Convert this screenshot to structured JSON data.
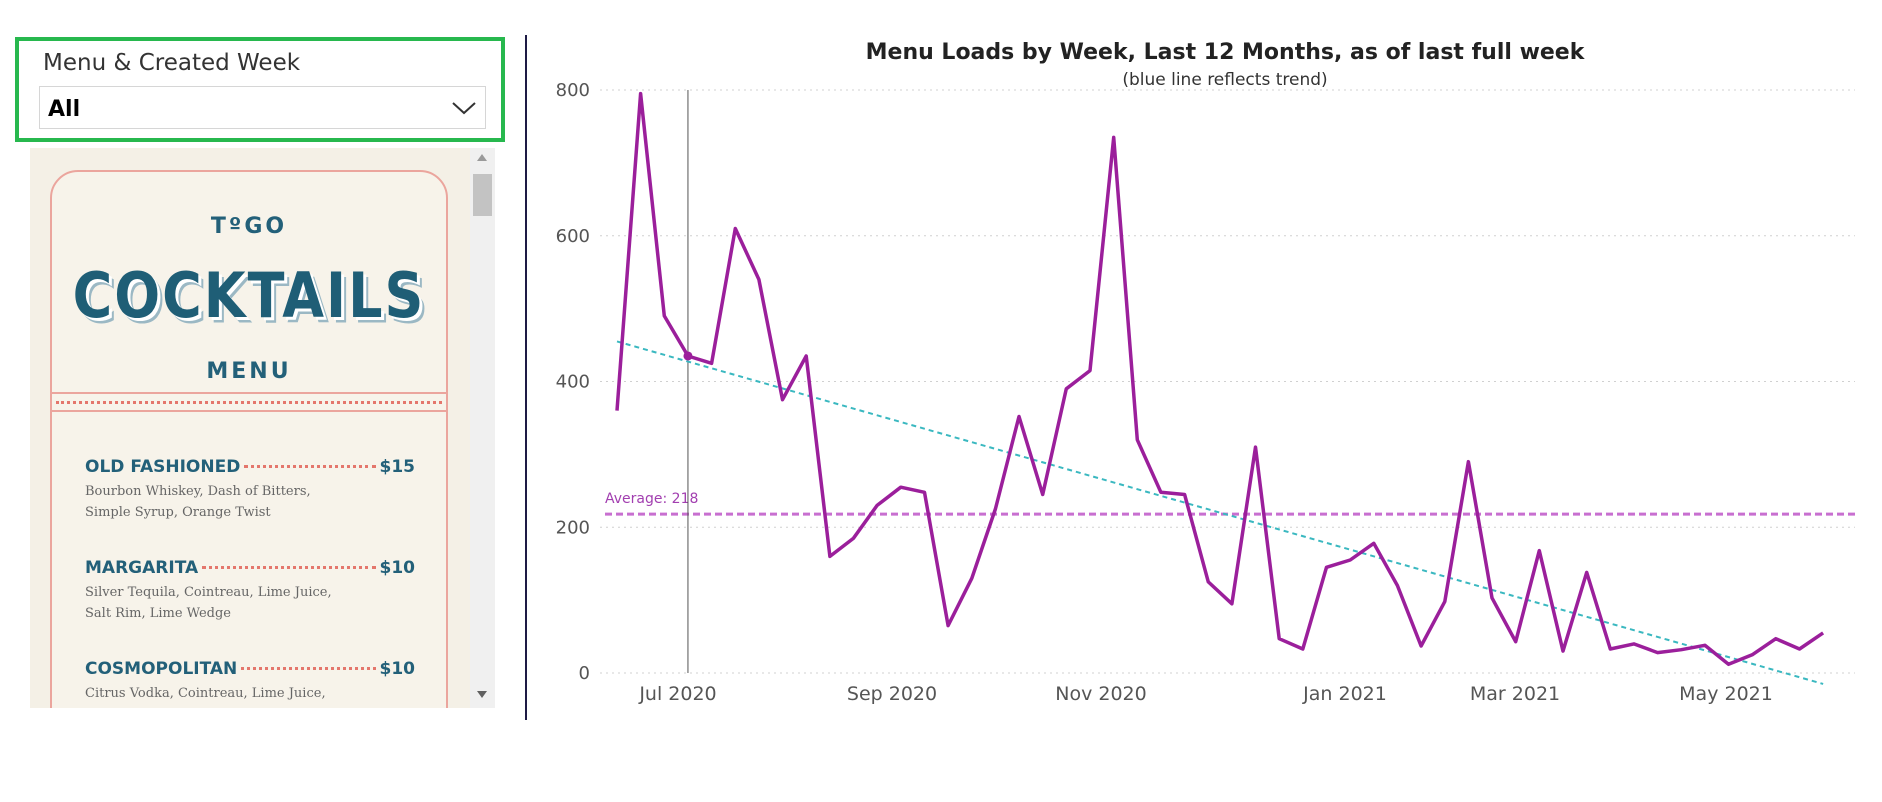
{
  "slicer": {
    "title": "Menu & Created Week",
    "selected_value": "All",
    "chevron_icon": "chevron-down-icon"
  },
  "menu_image": {
    "togo": "TºGO",
    "title": "COCKTAILS",
    "subtitle": "MENU",
    "items": [
      {
        "name": "OLD FASHIONED",
        "price": "$15",
        "description": "Bourbon Whiskey, Dash of Bitters, Simple Syrup, Orange Twist"
      },
      {
        "name": "MARGARITA",
        "price": "$10",
        "description": "Silver Tequila, Cointreau, Lime Juice, Salt Rim, Lime Wedge"
      },
      {
        "name": "COSMOPOLITAN",
        "price": "$10",
        "description": "Citrus Vodka, Cointreau, Lime Juice, Cranberry Juice"
      }
    ]
  },
  "chart_data": {
    "type": "line",
    "title": "Menu Loads by Week, Last 12 Months, as of last full week",
    "subtitle": "(blue line reflects trend)",
    "xlabel": "",
    "ylabel": "",
    "ylim": [
      0,
      800
    ],
    "y_ticks": [
      "800",
      "600",
      "400",
      "200",
      "0"
    ],
    "x_ticks": [
      "Jul 2020",
      "Sep 2020",
      "Nov 2020",
      "Jan 2021",
      "Mar 2021",
      "May 2021"
    ],
    "grid": true,
    "average_label": "Average: 218",
    "average_value": 218,
    "trend": {
      "start": 455,
      "end": -15
    },
    "hover_index": 3,
    "series_color": "#9b1f9b",
    "trend_color": "#3ab8c0",
    "average_color": "#c86fd0",
    "values": [
      360,
      795,
      490,
      435,
      425,
      610,
      540,
      375,
      435,
      160,
      185,
      230,
      255,
      248,
      65,
      130,
      225,
      352,
      245,
      390,
      415,
      735,
      320,
      248,
      245,
      125,
      95,
      310,
      47,
      33,
      145,
      155,
      178,
      120,
      37,
      98,
      290,
      103,
      43,
      168,
      30,
      138,
      33,
      40,
      28,
      32,
      38,
      12,
      25,
      47,
      33,
      55
    ]
  }
}
